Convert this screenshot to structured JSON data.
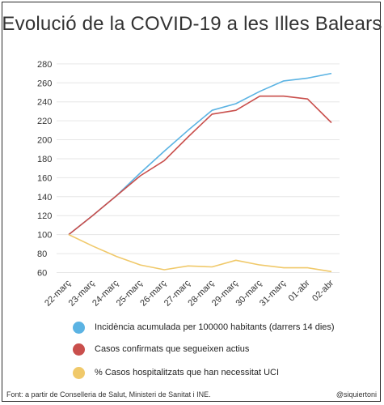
{
  "chart_data": {
    "type": "line",
    "title": "Evolució de la COVID-19 a les Illes Balears",
    "xlabel": "",
    "ylabel": "",
    "categories": [
      "22-març",
      "23-març",
      "24-març",
      "25-març",
      "26-març",
      "27-març",
      "28-març",
      "29-març",
      "30-març",
      "31-març",
      "01-abr",
      "02-abr"
    ],
    "y_ticks": [
      60,
      80,
      100,
      120,
      140,
      160,
      180,
      200,
      220,
      240,
      260,
      280
    ],
    "ylim": [
      57,
      285
    ],
    "grid": true,
    "legend_position": "bottom",
    "series": [
      {
        "name": "Incidència acumulada per 100000 habitants (darrers 14 dies)",
        "color": "#5bb3e3",
        "values": [
          100,
          120,
          141,
          165,
          188,
          210,
          231,
          238,
          251,
          262,
          265,
          270
        ]
      },
      {
        "name": "Casos confirmats que segueixen actius",
        "color": "#c94f4c",
        "values": [
          100,
          120,
          141,
          162,
          178,
          203,
          227,
          231,
          246,
          246,
          243,
          218
        ]
      },
      {
        "name": "% Casos hospitalitzats que han necessitat UCI",
        "color": "#f0c96a",
        "values": [
          100,
          88,
          77,
          68,
          63,
          67,
          66,
          73,
          68,
          65,
          65,
          61
        ]
      }
    ]
  },
  "footer": {
    "source": "Font: a partir de Conselleria de Salut, Ministeri de Sanitat i INE.",
    "handle": "@siquiertoni"
  }
}
